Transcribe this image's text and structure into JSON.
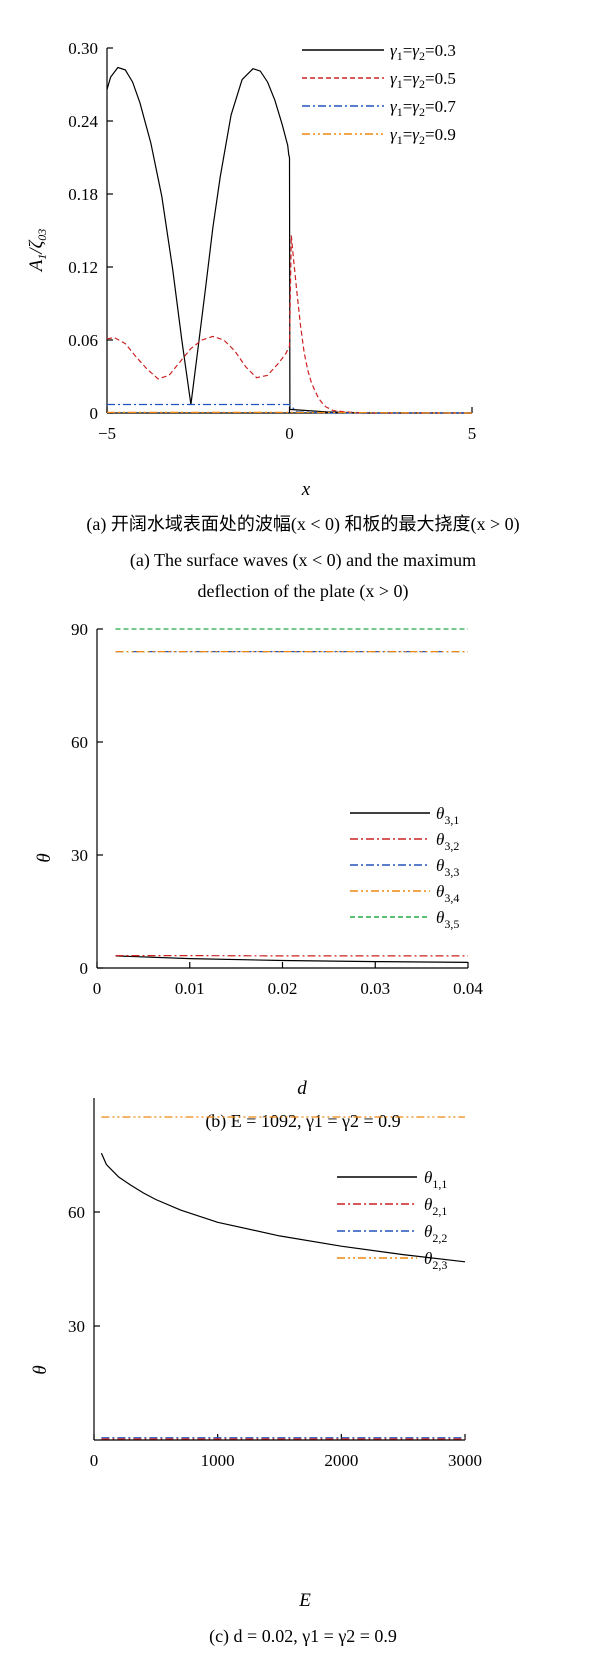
{
  "charts": {
    "a": {
      "ylabel_main": "A",
      "ylabel_sub1": "1",
      "ylabel_zeta": "/ζ",
      "ylabel_sub2": "03",
      "xlabel": "x",
      "caption_cn": "(a) 开阔水域表面处的波幅(x < 0) 和板的最大挠度(x > 0)",
      "caption_en1": "(a) The surface waves (x < 0) and the maximum",
      "caption_en2": "deflection of the plate (x > 0)",
      "legend": [
        "γ1=γ2=0.3",
        "γ1=γ2=0.5",
        "γ1=γ2=0.7",
        "γ1=γ2=0.9"
      ]
    },
    "b": {
      "ylabel": "θ",
      "xlabel": "d",
      "caption": "(b) E = 1092, γ1 = γ2 = 0.9",
      "legend": [
        "θ3,1",
        "θ3,2",
        "θ3,3",
        "θ3,4",
        "θ3,5"
      ]
    },
    "c": {
      "ylabel": "θ",
      "xlabel": "E",
      "caption": "(c) d = 0.02, γ1 = γ2 = 0.9",
      "legend": [
        "θ1,1",
        "θ2,1",
        "θ2,2",
        "θ2,3"
      ]
    }
  },
  "chart_data": [
    {
      "type": "line",
      "xlabel": "x",
      "ylabel": "A1/ζ03",
      "xlim": [
        -5,
        5
      ],
      "ylim": [
        0,
        0.3
      ],
      "xticks": [
        "-5",
        "0",
        "5"
      ],
      "yticks": [
        "0",
        "0.06",
        "0.12",
        "0.18",
        "0.24",
        "0.30"
      ],
      "legend_position": "top-right",
      "series": [
        {
          "name": "γ1=γ2=0.3",
          "color": "#000000",
          "dash": "solid",
          "x": [
            -5,
            -4.9,
            -4.7,
            -4.5,
            -4.3,
            -4.1,
            -3.8,
            -3.5,
            -3.2,
            -2.95,
            -2.7,
            -2.5,
            -2.3,
            -2.1,
            -1.9,
            -1.6,
            -1.3,
            -1.0,
            -0.8,
            -0.6,
            -0.4,
            -0.2,
            -0.05,
            -0.02,
            0,
            0.01,
            0.5,
            1,
            2,
            5
          ],
          "y": [
            0.266,
            0.276,
            0.284,
            0.282,
            0.272,
            0.255,
            0.222,
            0.178,
            0.118,
            0.06,
            0.007,
            0.055,
            0.103,
            0.152,
            0.194,
            0.245,
            0.274,
            0.283,
            0.281,
            0.272,
            0.257,
            0.237,
            0.22,
            0.212,
            0.21,
            0.003,
            0.002,
            0.001,
            0.0,
            0.0
          ]
        },
        {
          "name": "γ1=γ2=0.5",
          "color": "#cc2222",
          "dash": "dashed",
          "x": [
            -5,
            -4.8,
            -4.5,
            -4.2,
            -3.9,
            -3.6,
            -3.3,
            -3.0,
            -2.7,
            -2.4,
            -2.1,
            -1.8,
            -1.5,
            -1.2,
            -0.9,
            -0.6,
            -0.3,
            -0.1,
            0,
            0.05,
            0.1,
            0.2,
            0.3,
            0.4,
            0.5,
            0.6,
            0.7,
            0.8,
            0.9,
            1.0,
            1.2,
            1.5,
            2,
            5
          ],
          "y": [
            0.061,
            0.062,
            0.057,
            0.046,
            0.036,
            0.028,
            0.031,
            0.042,
            0.053,
            0.06,
            0.063,
            0.06,
            0.051,
            0.038,
            0.029,
            0.031,
            0.041,
            0.049,
            0.055,
            0.146,
            0.13,
            0.1,
            0.072,
            0.05,
            0.035,
            0.025,
            0.018,
            0.012,
            0.008,
            0.005,
            0.002,
            0.001,
            0.0,
            0.0
          ]
        },
        {
          "name": "γ1=γ2=0.7",
          "color": "#2255bb",
          "dash": "dashdot",
          "x": [
            -5,
            -2.7,
            -1.0,
            0,
            0.2,
            1,
            2,
            5
          ],
          "y": [
            0.007,
            0.007,
            0.007,
            0.007,
            0.001,
            0.0,
            0.0,
            0.0
          ]
        },
        {
          "name": "γ1=γ2=0.9",
          "color": "#ee8811",
          "dash": "dashdotdot",
          "x": [
            -5,
            0,
            5
          ],
          "y": [
            0.0005,
            0.0005,
            0.0
          ]
        }
      ]
    },
    {
      "type": "line",
      "xlabel": "d",
      "ylabel": "θ",
      "xlim": [
        0,
        0.04
      ],
      "ylim": [
        0,
        90
      ],
      "xticks": [
        "0",
        "0.01",
        "0.02",
        "0.03",
        "0.04"
      ],
      "yticks": [
        "0",
        "30",
        "60",
        "90"
      ],
      "legend_position": "center-right",
      "series": [
        {
          "name": "θ3,1",
          "color": "#000000",
          "dash": "solid",
          "x": [
            0.002,
            0.01,
            0.02,
            0.03,
            0.04
          ],
          "y": [
            3.2,
            2.5,
            2.0,
            1.7,
            1.5
          ]
        },
        {
          "name": "θ3,2",
          "color": "#cc2222",
          "dash": "dashdot",
          "x": [
            0.002,
            0.01,
            0.02,
            0.03,
            0.04
          ],
          "y": [
            3.3,
            3.3,
            3.2,
            3.2,
            3.2
          ]
        },
        {
          "name": "θ3,3",
          "color": "#2255bb",
          "dash": "dashdot",
          "x": [
            0.002,
            0.01,
            0.02,
            0.03,
            0.04
          ],
          "y": [
            84,
            84,
            84,
            84,
            84
          ]
        },
        {
          "name": "θ3,4",
          "color": "#ee8811",
          "dash": "dashdotdot",
          "x": [
            0.002,
            0.01,
            0.02,
            0.03,
            0.04
          ],
          "y": [
            84,
            84,
            84,
            84,
            84
          ]
        },
        {
          "name": "θ3,5",
          "color": "#22aa44",
          "dash": "dashed",
          "x": [
            0.002,
            0.01,
            0.02,
            0.03,
            0.04
          ],
          "y": [
            90,
            90,
            90,
            90,
            90
          ]
        }
      ]
    },
    {
      "type": "line",
      "xlabel": "E",
      "ylabel": "θ",
      "xlim": [
        0,
        3000
      ],
      "ylim": [
        0,
        90
      ],
      "xticks": [
        "0",
        "1000",
        "2000",
        "3000"
      ],
      "yticks": [
        "30",
        "60"
      ],
      "legend_position": "top-right",
      "series": [
        {
          "name": "θ1,1",
          "color": "#000000",
          "dash": "solid",
          "x": [
            60,
            100,
            200,
            300,
            400,
            500,
            700,
            1000,
            1500,
            2000,
            2500,
            3000
          ],
          "y": [
            75.5,
            72.5,
            69.2,
            67.0,
            65.0,
            63.3,
            60.5,
            57.3,
            53.7,
            51.0,
            48.8,
            46.9
          ]
        },
        {
          "name": "θ2,1",
          "color": "#cc2222",
          "dash": "dashdot",
          "x": [
            60,
            1000,
            2000,
            3000
          ],
          "y": [
            0.3,
            0.3,
            0.3,
            0.3
          ]
        },
        {
          "name": "θ2,2",
          "color": "#2255bb",
          "dash": "dashdot",
          "x": [
            60,
            1000,
            2000,
            3000
          ],
          "y": [
            0.6,
            0.6,
            0.6,
            0.6
          ]
        },
        {
          "name": "θ2,3",
          "color": "#ee8811",
          "dash": "dashdotdot",
          "x": [
            60,
            1000,
            2000,
            3000
          ],
          "y": [
            85.0,
            85.0,
            85.0,
            85.0
          ]
        }
      ]
    }
  ]
}
